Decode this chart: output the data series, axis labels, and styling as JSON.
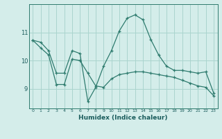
{
  "line1_x": [
    0,
    1,
    2,
    3,
    4,
    5,
    6,
    7,
    8,
    9,
    10,
    11,
    12,
    13,
    14,
    15,
    16,
    17,
    18,
    19,
    20,
    21,
    22,
    23
  ],
  "line1_y": [
    10.72,
    10.65,
    10.35,
    9.55,
    9.55,
    10.35,
    10.25,
    8.55,
    9.05,
    9.8,
    10.35,
    11.05,
    11.5,
    11.62,
    11.45,
    10.75,
    10.2,
    9.8,
    9.65,
    9.65,
    9.6,
    9.55,
    9.6,
    8.85
  ],
  "line2_x": [
    0,
    1,
    2,
    3,
    4,
    5,
    6,
    7,
    8,
    9,
    10,
    11,
    12,
    13,
    14,
    15,
    16,
    17,
    18,
    19,
    20,
    21,
    22,
    23
  ],
  "line2_y": [
    10.72,
    10.45,
    10.2,
    9.15,
    9.15,
    10.05,
    10.0,
    9.55,
    9.1,
    9.05,
    9.35,
    9.5,
    9.55,
    9.6,
    9.6,
    9.55,
    9.5,
    9.45,
    9.4,
    9.3,
    9.2,
    9.1,
    9.05,
    8.75
  ],
  "color": "#2e7b6e",
  "bg_color": "#d4edea",
  "grid_color": "#aad4ce",
  "xlabel": "Humidex (Indice chaleur)",
  "yticks": [
    9,
    10,
    11
  ],
  "xticks": [
    0,
    1,
    2,
    3,
    4,
    5,
    6,
    7,
    8,
    9,
    10,
    11,
    12,
    13,
    14,
    15,
    16,
    17,
    18,
    19,
    20,
    21,
    22,
    23
  ],
  "ylim": [
    8.3,
    12.0
  ],
  "xlim": [
    -0.5,
    23.5
  ]
}
